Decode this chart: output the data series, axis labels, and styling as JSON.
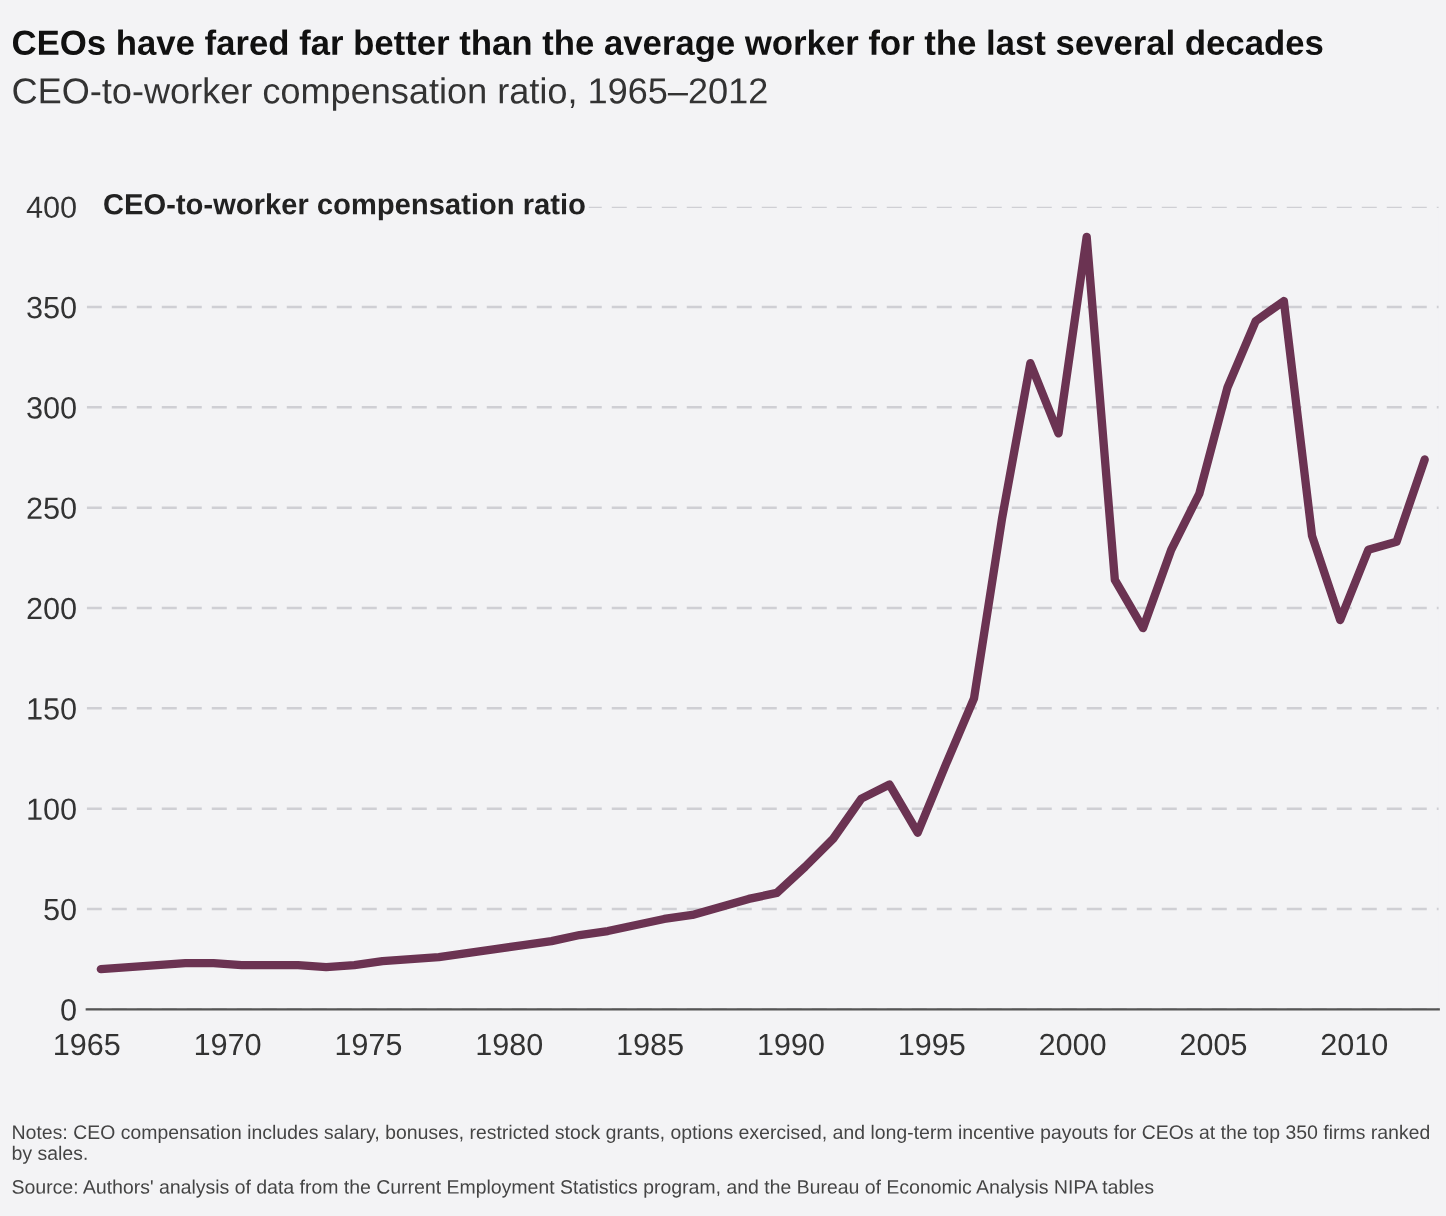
{
  "chart_data": {
    "type": "line",
    "title": "CEOs have fared far better than the average worker for the last several decades",
    "subtitle": "CEO-to-worker compensation ratio, 1965–2012",
    "ylabel": "CEO-to-worker compensation ratio",
    "annotations": [
      "Notes: CEO compensation includes salary, bonuses, restricted stock grants, options exercised, and long-term incentive payouts for CEOs at the top 350 firms ranked by sales.",
      "Source: Authors' analysis of data from the Current Employment Statistics program, and the Bureau of Economic Analysis NIPA tables"
    ],
    "series": [
      {
        "color": "#6b3352",
        "x": [
          1965.5,
          1966.5,
          1967.5,
          1968.5,
          1969.5,
          1970.5,
          1971.5,
          1972.5,
          1973.5,
          1974.5,
          1975.5,
          1976.5,
          1977.5,
          1978.5,
          1979.5,
          1980.5,
          1981.5,
          1982.5,
          1983.5,
          1984.5,
          1985.5,
          1986.5,
          1987.5,
          1988.5,
          1989.5,
          1990.5,
          1991.5,
          1992.5,
          1993.5,
          1994.5,
          1995.5,
          1996.5,
          1997.5,
          1998.5,
          1999.5,
          2000.5,
          2001.5,
          2002.5,
          2003.5,
          2004.5,
          2005.5,
          2006.5,
          2007.5,
          2008.5,
          2009.5,
          2010.5,
          2011.5,
          2012.5
        ],
        "values": [
          20,
          21,
          22,
          23,
          23,
          22,
          22,
          22,
          21,
          22,
          24,
          25,
          26,
          28,
          30,
          32,
          34,
          37,
          39,
          42,
          45,
          47,
          51,
          55,
          58,
          71,
          85,
          105,
          112,
          88,
          122,
          155,
          245,
          322,
          287,
          385,
          214,
          190,
          229,
          257,
          310,
          343,
          353,
          236,
          194,
          229,
          233,
          274
        ]
      }
    ],
    "xlim": [
      1965,
      2013
    ],
    "xticks": [
      1965,
      1970,
      1975,
      1980,
      1985,
      1990,
      1995,
      2000,
      2005,
      2010
    ],
    "ylim": [
      0,
      400
    ],
    "yticks": [
      0,
      50,
      100,
      150,
      200,
      250,
      300,
      350,
      400
    ],
    "grid": "y",
    "line_style": "solid",
    "marker": "none"
  }
}
